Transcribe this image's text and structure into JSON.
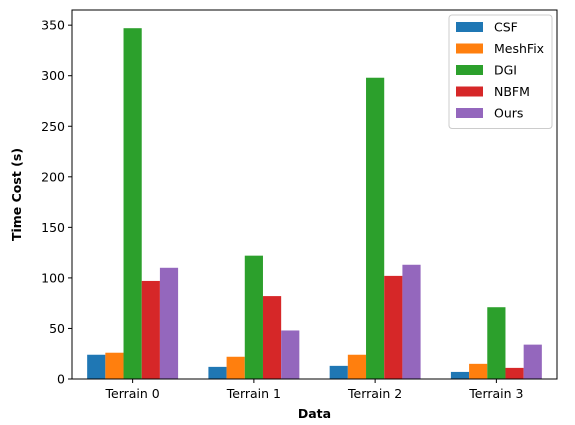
{
  "chart_data": {
    "type": "bar",
    "title": "",
    "xlabel": "Data",
    "ylabel": "Time Cost (s)",
    "categories": [
      "Terrain 0",
      "Terrain 1",
      "Terrain 2",
      "Terrain 3"
    ],
    "ylim": [
      0,
      365
    ],
    "yticks": [
      0,
      50,
      100,
      150,
      200,
      250,
      300,
      350
    ],
    "grid": false,
    "legend_position": "top-right",
    "series": [
      {
        "name": "CSF",
        "color": "#1f77b4",
        "values": [
          24,
          12,
          13,
          7
        ]
      },
      {
        "name": "MeshFix",
        "color": "#ff7f0e",
        "values": [
          26,
          22,
          24,
          15
        ]
      },
      {
        "name": "DGI",
        "color": "#2ca02c",
        "values": [
          347,
          122,
          298,
          71
        ]
      },
      {
        "name": "NBFM",
        "color": "#d62728",
        "values": [
          97,
          82,
          102,
          11
        ]
      },
      {
        "name": "Ours",
        "color": "#9467bd",
        "values": [
          110,
          48,
          113,
          34
        ]
      }
    ]
  }
}
